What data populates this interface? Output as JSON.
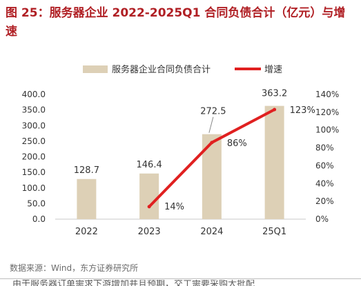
{
  "title": "图 25：服务器企业 2022-2025Q1 合同负债合计（亿元）与增速",
  "source": "数据来源：Wind，东方证券研究所",
  "cut_text": "由于服务器订单需求下游增加并且预期，交工需要采购大批配",
  "colors": {
    "bar": "#ddd0b6",
    "line": "#e02020",
    "title": "#b01f24",
    "axis": "#c8c8c8"
  },
  "chart_data": {
    "type": "bar",
    "categories": [
      "2022",
      "2023",
      "2024",
      "25Q1"
    ],
    "series": [
      {
        "name": "服务器企业合同负债合计",
        "type": "bar",
        "axis": "left",
        "values": [
          128.7,
          146.4,
          272.5,
          363.2
        ],
        "labels": [
          "128.7",
          "146.4",
          "272.5",
          "363.2"
        ]
      },
      {
        "name": "增速",
        "type": "line",
        "axis": "right",
        "values": [
          null,
          14,
          86,
          123
        ],
        "labels": [
          "",
          "14%",
          "86%",
          "123%"
        ]
      }
    ],
    "ylim_left": [
      0,
      400
    ],
    "yticks_left": [
      "0.0",
      "50.0",
      "100.0",
      "150.0",
      "200.0",
      "250.0",
      "300.0",
      "350.0",
      "400.0"
    ],
    "ylim_right": [
      0,
      140
    ],
    "yticks_right": [
      "0%",
      "20%",
      "40%",
      "60%",
      "80%",
      "100%",
      "120%",
      "140%"
    ],
    "legend_position": "top",
    "grid": false
  }
}
